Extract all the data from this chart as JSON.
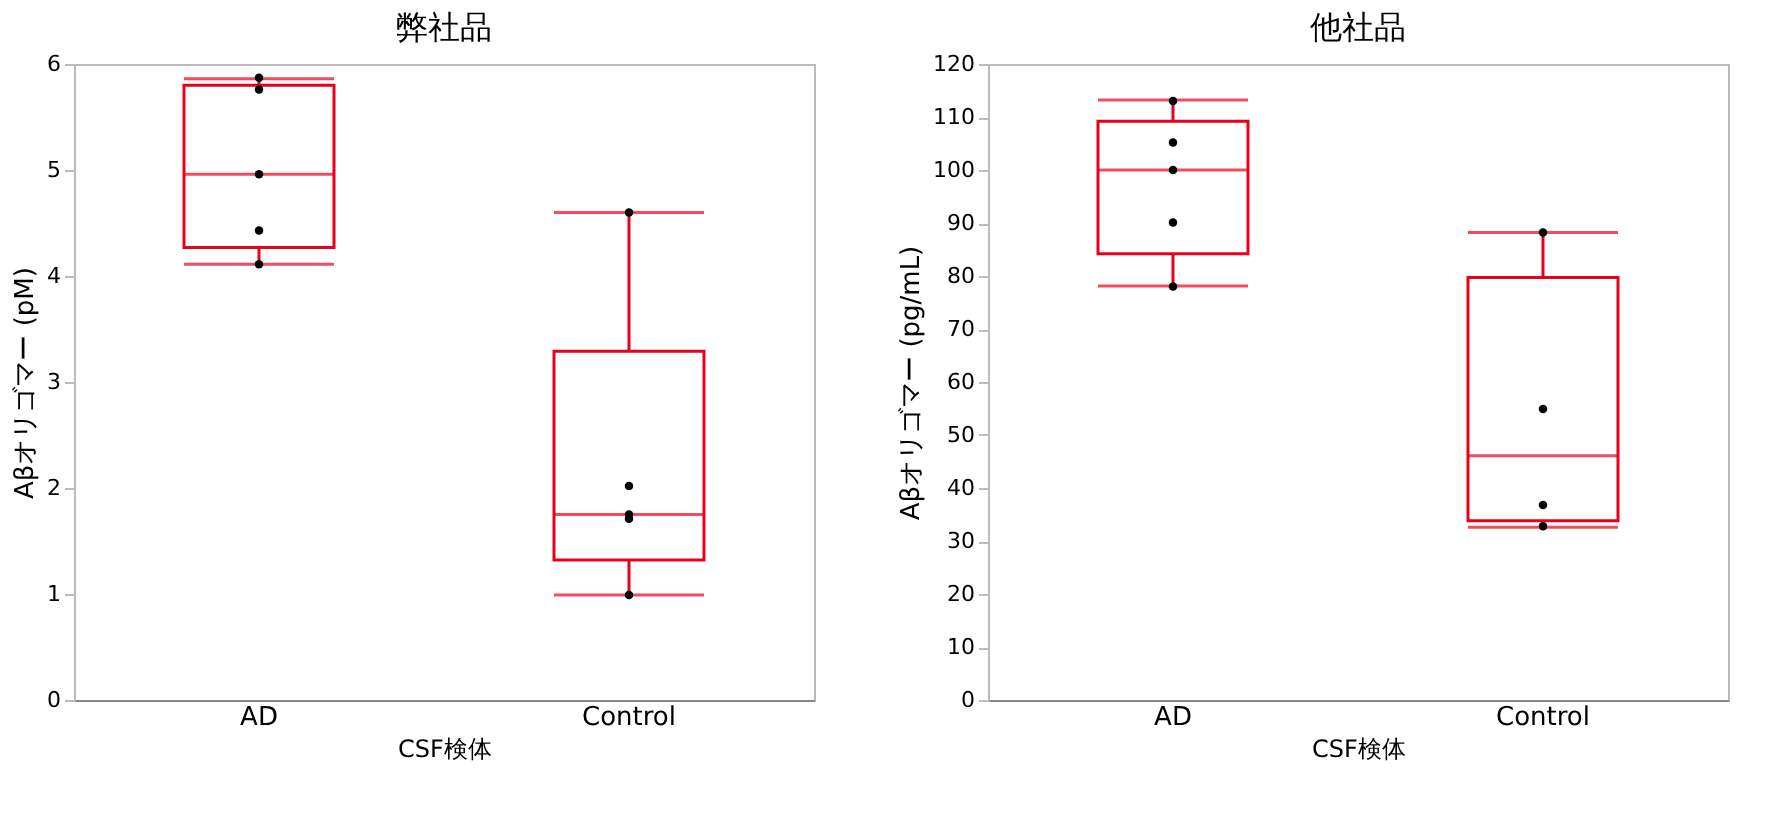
{
  "chart_data": [
    {
      "type": "box",
      "title": "弊社品",
      "xlabel": "CSF検体",
      "ylabel": "Aβオリゴマー (pM)",
      "categories": [
        "AD",
        "Control"
      ],
      "color": "#e8001c",
      "ylim": [
        0,
        6
      ],
      "yticks": [
        0,
        1,
        2,
        3,
        4,
        5,
        6
      ],
      "grid": false,
      "boxes": [
        {
          "low": 4.11,
          "q1": 4.27,
          "median": 4.96,
          "q3": 5.8,
          "high": 5.86
        },
        {
          "low": 0.99,
          "q1": 1.32,
          "median": 1.75,
          "q3": 3.29,
          "high": 4.6
        }
      ],
      "series": [
        {
          "type": "scatter",
          "color": "#000000",
          "x": [
            "AD",
            "AD",
            "AD",
            "AD",
            "AD",
            "Control",
            "Control",
            "Control",
            "Control",
            "Control"
          ],
          "values": [
            5.87,
            5.76,
            4.96,
            4.43,
            4.11,
            4.6,
            2.02,
            1.75,
            1.71,
            0.99
          ]
        }
      ]
    },
    {
      "type": "box",
      "title": "他社品",
      "xlabel": "CSF検体",
      "ylabel": "Aβオリゴマー (pg/mL)",
      "categories": [
        "AD",
        "Control"
      ],
      "color": "#e8001c",
      "ylim": [
        0,
        120
      ],
      "yticks": [
        0,
        10,
        20,
        30,
        40,
        50,
        60,
        70,
        80,
        90,
        100,
        110,
        120
      ],
      "grid": false,
      "boxes": [
        {
          "low": 78.1,
          "q1": 84.2,
          "median": 100,
          "q3": 109.2,
          "high": 113.2
        },
        {
          "low": 32.6,
          "q1": 33.8,
          "median": 46.1,
          "q3": 79.7,
          "high": 88.2
        }
      ],
      "series": [
        {
          "type": "scatter",
          "color": "#000000",
          "x": [
            "AD",
            "AD",
            "AD",
            "AD",
            "AD",
            "Control",
            "Control",
            "Control",
            "Control"
          ],
          "values": [
            113,
            105.2,
            100,
            90.1,
            78,
            88.2,
            54.9,
            36.8,
            32.8
          ]
        }
      ]
    }
  ]
}
